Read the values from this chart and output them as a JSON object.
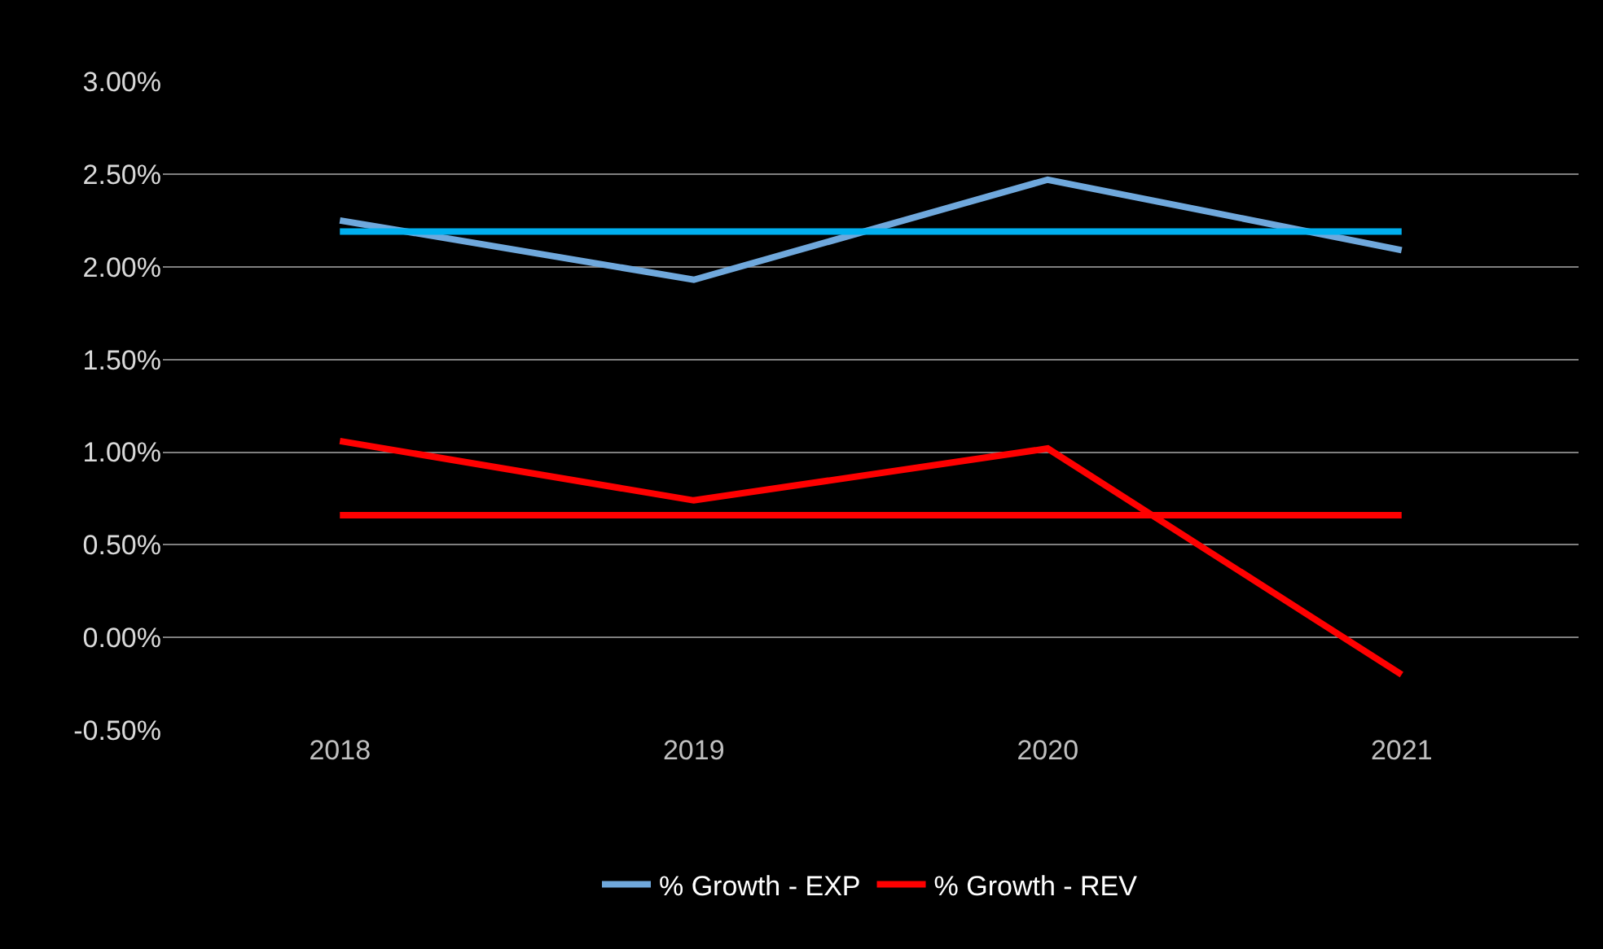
{
  "chart_data": {
    "type": "line",
    "categories": [
      "2018",
      "2019",
      "2020",
      "2021"
    ],
    "series": [
      {
        "name": "% Growth - EXP",
        "color": "#6fa8dc",
        "values": [
          2.25,
          1.93,
          2.47,
          2.09
        ]
      },
      {
        "name": "% Growth - REV",
        "color": "#ff0000",
        "values": [
          1.06,
          0.74,
          1.02,
          -0.2
        ]
      },
      {
        "color": "#00b0f0",
        "values": [
          2.19,
          2.19,
          2.19,
          2.19
        ]
      },
      {
        "color": "#ff0000",
        "values": [
          0.66,
          0.66,
          0.66,
          0.66
        ]
      }
    ],
    "ylim": [
      -0.5,
      3.0
    ],
    "yticks": [
      {
        "value": -0.5,
        "label": "-0.50%"
      },
      {
        "value": 0,
        "label": "0.00%"
      },
      {
        "value": 0.5,
        "label": "0.50%"
      },
      {
        "value": 1.0,
        "label": "1.00%"
      },
      {
        "value": 1.5,
        "label": "1.50%"
      },
      {
        "value": 2.0,
        "label": "2.00%"
      },
      {
        "value": 2.5,
        "label": "2.50%"
      },
      {
        "value": 3.0,
        "label": "3.00%"
      }
    ],
    "grid": "y",
    "legend": "bottom",
    "marker": "none",
    "line_style": "solid"
  }
}
